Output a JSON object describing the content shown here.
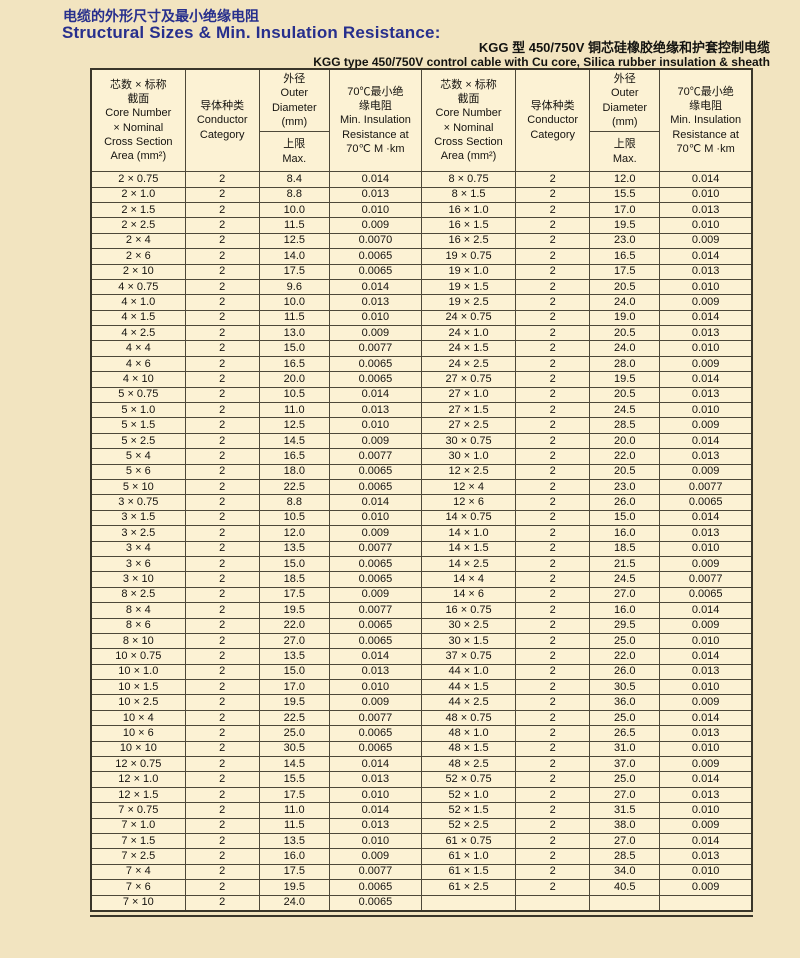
{
  "page": {
    "title_zh": "电缆的外形尺寸及最小绝缘电阻",
    "title_en": "Structural Sizes & Min. Insulation Resistance:",
    "subtitle_zh": "KGG 型 450/750V 铜芯硅橡胶绝缘和护套控制电缆",
    "subtitle_en": "KGG type 450/750V control cable with Cu core, Silica rubber insulation & sheath"
  },
  "colors": {
    "page_bg": "#f2e4c0",
    "cell_bg": "#fcf2d4",
    "title_blue": "#272f8d",
    "border": "#4e4939",
    "text": "#15130f"
  },
  "table": {
    "header": {
      "core_lines": [
        "芯数 × 标称",
        "截面",
        "Core Number",
        "× Nominal",
        "Cross Section",
        "Area (mm²)"
      ],
      "category_lines": [
        "导体种类",
        "Conductor",
        "Category"
      ],
      "diameter_top_lines": [
        "外径",
        "Outer",
        "Diameter",
        "(mm)"
      ],
      "diameter_bottom_lines": [
        "上限",
        "Max."
      ],
      "resistance_lines": [
        "70℃最小绝",
        "缘电阻",
        "Min. Insulation",
        "Resistance at",
        "70℃ M ·km"
      ]
    },
    "rows": [
      {
        "left": [
          "2 × 0.75",
          "2",
          "8.4",
          "0.014"
        ],
        "right": [
          "8 × 0.75",
          "2",
          "12.0",
          "0.014"
        ]
      },
      {
        "left": [
          "2 × 1.0",
          "2",
          "8.8",
          "0.013"
        ],
        "right": [
          "8 × 1.5",
          "2",
          "15.5",
          "0.010"
        ]
      },
      {
        "left": [
          "2 × 1.5",
          "2",
          "10.0",
          "0.010"
        ],
        "right": [
          "16 × 1.0",
          "2",
          "17.0",
          "0.013"
        ]
      },
      {
        "left": [
          "2 × 2.5",
          "2",
          "11.5",
          "0.009"
        ],
        "right": [
          "16 × 1.5",
          "2",
          "19.5",
          "0.010"
        ]
      },
      {
        "left": [
          "2 × 4",
          "2",
          "12.5",
          "0.0070"
        ],
        "right": [
          "16 × 2.5",
          "2",
          "23.0",
          "0.009"
        ]
      },
      {
        "left": [
          "2 × 6",
          "2",
          "14.0",
          "0.0065"
        ],
        "right": [
          "19 × 0.75",
          "2",
          "16.5",
          "0.014"
        ]
      },
      {
        "left": [
          "2 × 10",
          "2",
          "17.5",
          "0.0065"
        ],
        "right": [
          "19 × 1.0",
          "2",
          "17.5",
          "0.013"
        ]
      },
      {
        "left": [
          "4 × 0.75",
          "2",
          "9.6",
          "0.014"
        ],
        "right": [
          "19 × 1.5",
          "2",
          "20.5",
          "0.010"
        ]
      },
      {
        "left": [
          "4 × 1.0",
          "2",
          "10.0",
          "0.013"
        ],
        "right": [
          "19 × 2.5",
          "2",
          "24.0",
          "0.009"
        ]
      },
      {
        "left": [
          "4 × 1.5",
          "2",
          "11.5",
          "0.010"
        ],
        "right": [
          "24 × 0.75",
          "2",
          "19.0",
          "0.014"
        ]
      },
      {
        "left": [
          "4 × 2.5",
          "2",
          "13.0",
          "0.009"
        ],
        "right": [
          "24 × 1.0",
          "2",
          "20.5",
          "0.013"
        ]
      },
      {
        "left": [
          "4 × 4",
          "2",
          "15.0",
          "0.0077"
        ],
        "right": [
          "24 × 1.5",
          "2",
          "24.0",
          "0.010"
        ]
      },
      {
        "left": [
          "4 × 6",
          "2",
          "16.5",
          "0.0065"
        ],
        "right": [
          "24 × 2.5",
          "2",
          "28.0",
          "0.009"
        ]
      },
      {
        "left": [
          "4 × 10",
          "2",
          "20.0",
          "0.0065"
        ],
        "right": [
          "27 × 0.75",
          "2",
          "19.5",
          "0.014"
        ]
      },
      {
        "left": [
          "5 × 0.75",
          "2",
          "10.5",
          "0.014"
        ],
        "right": [
          "27 × 1.0",
          "2",
          "20.5",
          "0.013"
        ]
      },
      {
        "left": [
          "5 × 1.0",
          "2",
          "11.0",
          "0.013"
        ],
        "right": [
          "27 × 1.5",
          "2",
          "24.5",
          "0.010"
        ]
      },
      {
        "left": [
          "5 × 1.5",
          "2",
          "12.5",
          "0.010"
        ],
        "right": [
          "27 × 2.5",
          "2",
          "28.5",
          "0.009"
        ]
      },
      {
        "left": [
          "5 × 2.5",
          "2",
          "14.5",
          "0.009"
        ],
        "right": [
          "30 × 0.75",
          "2",
          "20.0",
          "0.014"
        ]
      },
      {
        "left": [
          "5 × 4",
          "2",
          "16.5",
          "0.0077"
        ],
        "right": [
          "30 × 1.0",
          "2",
          "22.0",
          "0.013"
        ]
      },
      {
        "left": [
          "5 × 6",
          "2",
          "18.0",
          "0.0065"
        ],
        "right": [
          "12 × 2.5",
          "2",
          "20.5",
          "0.009"
        ]
      },
      {
        "left": [
          "5 × 10",
          "2",
          "22.5",
          "0.0065"
        ],
        "right": [
          "12 × 4",
          "2",
          "23.0",
          "0.0077"
        ]
      },
      {
        "left": [
          "3 × 0.75",
          "2",
          "8.8",
          "0.014"
        ],
        "right": [
          "12 × 6",
          "2",
          "26.0",
          "0.0065"
        ]
      },
      {
        "left": [
          "3 × 1.5",
          "2",
          "10.5",
          "0.010"
        ],
        "right": [
          "14 × 0.75",
          "2",
          "15.0",
          "0.014"
        ]
      },
      {
        "left": [
          "3 × 2.5",
          "2",
          "12.0",
          "0.009"
        ],
        "right": [
          "14 × 1.0",
          "2",
          "16.0",
          "0.013"
        ]
      },
      {
        "left": [
          "3 × 4",
          "2",
          "13.5",
          "0.0077"
        ],
        "right": [
          "14 × 1.5",
          "2",
          "18.5",
          "0.010"
        ]
      },
      {
        "left": [
          "3 × 6",
          "2",
          "15.0",
          "0.0065"
        ],
        "right": [
          "14 × 2.5",
          "2",
          "21.5",
          "0.009"
        ]
      },
      {
        "left": [
          "3 × 10",
          "2",
          "18.5",
          "0.0065"
        ],
        "right": [
          "14 × 4",
          "2",
          "24.5",
          "0.0077"
        ]
      },
      {
        "left": [
          "8 × 2.5",
          "2",
          "17.5",
          "0.009"
        ],
        "right": [
          "14 × 6",
          "2",
          "27.0",
          "0.0065"
        ]
      },
      {
        "left": [
          "8 × 4",
          "2",
          "19.5",
          "0.0077"
        ],
        "right": [
          "16 × 0.75",
          "2",
          "16.0",
          "0.014"
        ]
      },
      {
        "left": [
          "8 × 6",
          "2",
          "22.0",
          "0.0065"
        ],
        "right": [
          "30 × 2.5",
          "2",
          "29.5",
          "0.009"
        ]
      },
      {
        "left": [
          "8 × 10",
          "2",
          "27.0",
          "0.0065"
        ],
        "right": [
          "30 × 1.5",
          "2",
          "25.0",
          "0.010"
        ]
      },
      {
        "left": [
          "10 × 0.75",
          "2",
          "13.5",
          "0.014"
        ],
        "right": [
          "37 × 0.75",
          "2",
          "22.0",
          "0.014"
        ]
      },
      {
        "left": [
          "10 × 1.0",
          "2",
          "15.0",
          "0.013"
        ],
        "right": [
          "44 × 1.0",
          "2",
          "26.0",
          "0.013"
        ]
      },
      {
        "left": [
          "10 × 1.5",
          "2",
          "17.0",
          "0.010"
        ],
        "right": [
          "44 × 1.5",
          "2",
          "30.5",
          "0.010"
        ]
      },
      {
        "left": [
          "10 × 2.5",
          "2",
          "19.5",
          "0.009"
        ],
        "right": [
          "44 × 2.5",
          "2",
          "36.0",
          "0.009"
        ]
      },
      {
        "left": [
          "10 × 4",
          "2",
          "22.5",
          "0.0077"
        ],
        "right": [
          "48 × 0.75",
          "2",
          "25.0",
          "0.014"
        ]
      },
      {
        "left": [
          "10 × 6",
          "2",
          "25.0",
          "0.0065"
        ],
        "right": [
          "48 × 1.0",
          "2",
          "26.5",
          "0.013"
        ]
      },
      {
        "left": [
          "10 × 10",
          "2",
          "30.5",
          "0.0065"
        ],
        "right": [
          "48 × 1.5",
          "2",
          "31.0",
          "0.010"
        ]
      },
      {
        "left": [
          "12 × 0.75",
          "2",
          "14.5",
          "0.014"
        ],
        "right": [
          "48 × 2.5",
          "2",
          "37.0",
          "0.009"
        ]
      },
      {
        "left": [
          "12 × 1.0",
          "2",
          "15.5",
          "0.013"
        ],
        "right": [
          "52 × 0.75",
          "2",
          "25.0",
          "0.014"
        ]
      },
      {
        "left": [
          "12 × 1.5",
          "2",
          "17.5",
          "0.010"
        ],
        "right": [
          "52 × 1.0",
          "2",
          "27.0",
          "0.013"
        ]
      },
      {
        "left": [
          "7 × 0.75",
          "2",
          "11.0",
          "0.014"
        ],
        "right": [
          "52 × 1.5",
          "2",
          "31.5",
          "0.010"
        ]
      },
      {
        "left": [
          "7 × 1.0",
          "2",
          "11.5",
          "0.013"
        ],
        "right": [
          "52 × 2.5",
          "2",
          "38.0",
          "0.009"
        ]
      },
      {
        "left": [
          "7 × 1.5",
          "2",
          "13.5",
          "0.010"
        ],
        "right": [
          "61 × 0.75",
          "2",
          "27.0",
          "0.014"
        ]
      },
      {
        "left": [
          "7 × 2.5",
          "2",
          "16.0",
          "0.009"
        ],
        "right": [
          "61 × 1.0",
          "2",
          "28.5",
          "0.013"
        ]
      },
      {
        "left": [
          "7 × 4",
          "2",
          "17.5",
          "0.0077"
        ],
        "right": [
          "61 × 1.5",
          "2",
          "34.0",
          "0.010"
        ]
      },
      {
        "left": [
          "7 × 6",
          "2",
          "19.5",
          "0.0065"
        ],
        "right": [
          "61 × 2.5",
          "2",
          "40.5",
          "0.009"
        ]
      },
      {
        "left": [
          "7 × 10",
          "2",
          "24.0",
          "0.0065"
        ],
        "right": [
          "",
          "",
          "",
          ""
        ]
      }
    ]
  }
}
